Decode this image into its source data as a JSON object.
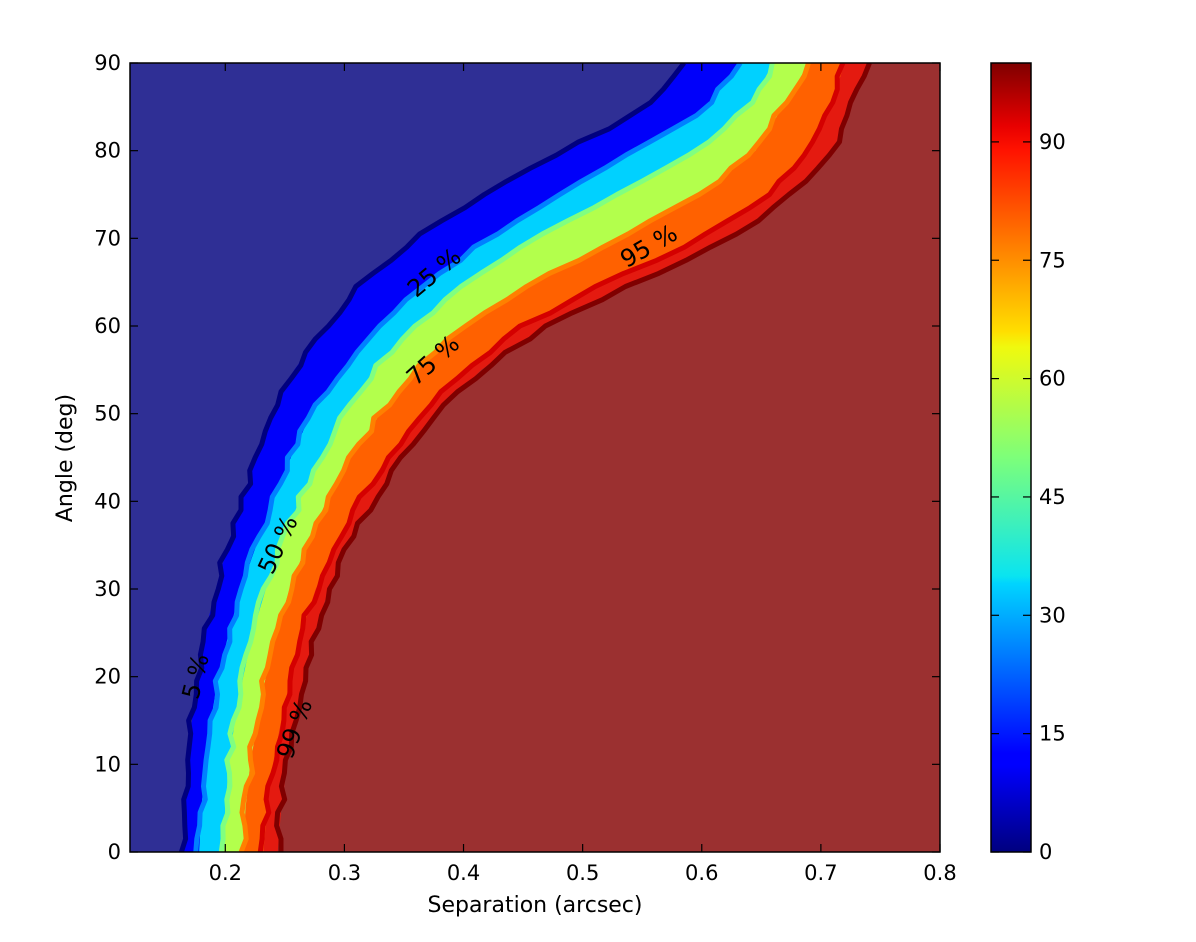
{
  "chart_data": {
    "type": "heatmap",
    "subtype": "filled-contour",
    "title": "",
    "xlabel": "Separation (arcsec)",
    "ylabel": "Angle (deg)",
    "xlim": [
      0.12,
      0.8
    ],
    "ylim": [
      0,
      90
    ],
    "xticks": [
      0.2,
      0.3,
      0.4,
      0.5,
      0.6,
      0.7,
      0.8
    ],
    "xtick_labels": [
      "0.2",
      "0.3",
      "0.4",
      "0.5",
      "0.6",
      "0.7",
      "0.8"
    ],
    "yticks": [
      0,
      10,
      20,
      30,
      40,
      50,
      60,
      70,
      80,
      90
    ],
    "ytick_labels": [
      "0",
      "10",
      "20",
      "30",
      "40",
      "50",
      "60",
      "70",
      "80",
      "90"
    ],
    "colormap": "jet",
    "colorbar": {
      "range": [
        0,
        100
      ],
      "ticks": [
        0,
        15,
        30,
        45,
        60,
        75,
        90
      ],
      "tick_labels": [
        "0",
        "15",
        "30",
        "45",
        "60",
        "75",
        "90"
      ]
    },
    "grid": false,
    "contours": [
      {
        "level": 5,
        "label": "5 %",
        "color": "#00007f",
        "points": [
          [
            0.165,
            0
          ],
          [
            0.166,
            5
          ],
          [
            0.168,
            10
          ],
          [
            0.172,
            15
          ],
          [
            0.177,
            20
          ],
          [
            0.183,
            25
          ],
          [
            0.192,
            30
          ],
          [
            0.202,
            35
          ],
          [
            0.214,
            40
          ],
          [
            0.226,
            45
          ],
          [
            0.24,
            50
          ],
          [
            0.258,
            55
          ],
          [
            0.285,
            60
          ],
          [
            0.315,
            65
          ],
          [
            0.36,
            70
          ],
          [
            0.415,
            75
          ],
          [
            0.485,
            80
          ],
          [
            0.555,
            85
          ],
          [
            0.585,
            90
          ]
        ],
        "label_pos": [
          0.176,
          20
        ],
        "label_angle": -76
      },
      {
        "level": 25,
        "label": "25 %",
        "color": "#0080ff",
        "points": [
          [
            0.178,
            0
          ],
          [
            0.18,
            5
          ],
          [
            0.183,
            10
          ],
          [
            0.188,
            15
          ],
          [
            0.194,
            20
          ],
          [
            0.203,
            25
          ],
          [
            0.213,
            30
          ],
          [
            0.226,
            35
          ],
          [
            0.24,
            40
          ],
          [
            0.255,
            45
          ],
          [
            0.272,
            50
          ],
          [
            0.298,
            55
          ],
          [
            0.33,
            60
          ],
          [
            0.37,
            65
          ],
          [
            0.42,
            70
          ],
          [
            0.48,
            75
          ],
          [
            0.545,
            80
          ],
          [
            0.605,
            85
          ],
          [
            0.63,
            90
          ]
        ],
        "label_pos": [
          0.376,
          66
        ],
        "label_angle": -40
      },
      {
        "level": 50,
        "label": "50 %",
        "color": "#80ff80",
        "points": [
          [
            0.198,
            0
          ],
          [
            0.2,
            5
          ],
          [
            0.203,
            10
          ],
          [
            0.208,
            15
          ],
          [
            0.215,
            20
          ],
          [
            0.223,
            25
          ],
          [
            0.234,
            30
          ],
          [
            0.247,
            35
          ],
          [
            0.262,
            40
          ],
          [
            0.28,
            45
          ],
          [
            0.3,
            50
          ],
          [
            0.325,
            55
          ],
          [
            0.36,
            60
          ],
          [
            0.405,
            65
          ],
          [
            0.46,
            70
          ],
          [
            0.53,
            75
          ],
          [
            0.595,
            80
          ],
          [
            0.64,
            85
          ],
          [
            0.66,
            90
          ]
        ],
        "label_pos": [
          0.245,
          35
        ],
        "label_angle": -65
      },
      {
        "level": 75,
        "label": "75 %",
        "color": "#ff8000",
        "points": [
          [
            0.215,
            0
          ],
          [
            0.217,
            5
          ],
          [
            0.221,
            10
          ],
          [
            0.227,
            15
          ],
          [
            0.234,
            20
          ],
          [
            0.243,
            25
          ],
          [
            0.254,
            30
          ],
          [
            0.268,
            35
          ],
          [
            0.285,
            40
          ],
          [
            0.305,
            45
          ],
          [
            0.33,
            50
          ],
          [
            0.36,
            55
          ],
          [
            0.4,
            60
          ],
          [
            0.46,
            65
          ],
          [
            0.53,
            70
          ],
          [
            0.6,
            75
          ],
          [
            0.645,
            80
          ],
          [
            0.668,
            85
          ],
          [
            0.69,
            90
          ]
        ],
        "label_pos": [
          0.375,
          56
        ],
        "label_angle": -42
      },
      {
        "level": 95,
        "label": "95 %",
        "color": "#d40000",
        "points": [
          [
            0.232,
            0
          ],
          [
            0.235,
            5
          ],
          [
            0.24,
            10
          ],
          [
            0.247,
            15
          ],
          [
            0.255,
            20
          ],
          [
            0.264,
            25
          ],
          [
            0.276,
            30
          ],
          [
            0.292,
            35
          ],
          [
            0.312,
            40
          ],
          [
            0.336,
            45
          ],
          [
            0.365,
            50
          ],
          [
            0.4,
            55
          ],
          [
            0.45,
            60
          ],
          [
            0.52,
            65
          ],
          [
            0.6,
            70
          ],
          [
            0.655,
            75
          ],
          [
            0.69,
            80
          ],
          [
            0.708,
            85
          ],
          [
            0.72,
            90
          ]
        ],
        "label_pos": [
          0.556,
          69
        ],
        "label_angle": -30
      },
      {
        "level": 99,
        "label": "99 %",
        "color": "#7f0000",
        "points": [
          [
            0.244,
            0
          ],
          [
            0.247,
            5
          ],
          [
            0.252,
            10
          ],
          [
            0.258,
            15
          ],
          [
            0.266,
            20
          ],
          [
            0.275,
            25
          ],
          [
            0.287,
            30
          ],
          [
            0.303,
            35
          ],
          [
            0.324,
            40
          ],
          [
            0.348,
            45
          ],
          [
            0.378,
            50
          ],
          [
            0.415,
            55
          ],
          [
            0.47,
            60
          ],
          [
            0.545,
            65
          ],
          [
            0.625,
            70
          ],
          [
            0.675,
            75
          ],
          [
            0.71,
            80
          ],
          [
            0.725,
            85
          ],
          [
            0.74,
            90
          ]
        ],
        "label_pos": [
          0.259,
          14
        ],
        "label_angle": -70
      }
    ]
  }
}
